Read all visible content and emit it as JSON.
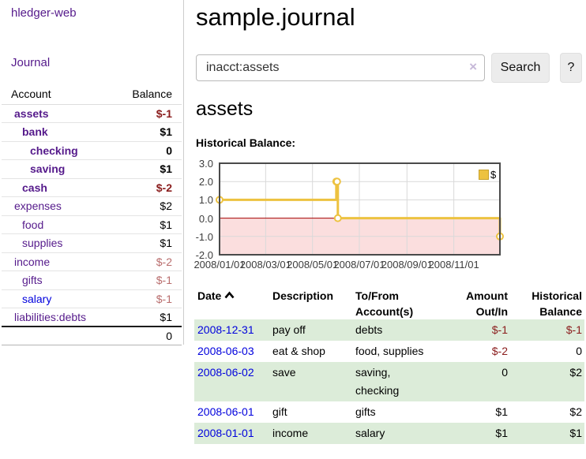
{
  "sidebar": {
    "brand": "hledger-web",
    "nav": {
      "journal_label": "Journal"
    },
    "accounts_table": {
      "headers": {
        "account": "Account",
        "balance": "Balance"
      },
      "accounts": [
        {
          "name": "assets",
          "balance": "$-1",
          "depth": 0,
          "bold": true,
          "balance_tone": "strong"
        },
        {
          "name": "bank",
          "balance": "$1",
          "depth": 1,
          "bold": true,
          "balance_tone": "normal"
        },
        {
          "name": "checking",
          "balance": "0",
          "depth": 2,
          "bold": true,
          "balance_tone": "normal"
        },
        {
          "name": "saving",
          "balance": "$1",
          "depth": 2,
          "bold": true,
          "balance_tone": "normal"
        },
        {
          "name": "cash",
          "balance": "$-2",
          "depth": 1,
          "bold": true,
          "balance_tone": "strong"
        },
        {
          "name": "expenses",
          "balance": "$2",
          "depth": 0,
          "bold": false,
          "balance_tone": "normal"
        },
        {
          "name": "food",
          "balance": "$1",
          "depth": 1,
          "bold": false,
          "balance_tone": "normal"
        },
        {
          "name": "supplies",
          "balance": "$1",
          "depth": 1,
          "bold": false,
          "balance_tone": "normal"
        },
        {
          "name": "income",
          "balance": "$-2",
          "depth": 0,
          "bold": false,
          "balance_tone": "soft"
        },
        {
          "name": "gifts",
          "balance": "$-1",
          "depth": 1,
          "bold": false,
          "balance_tone": "soft"
        },
        {
          "name": "salary",
          "balance": "$-1",
          "depth": 1,
          "bold": false,
          "balance_tone": "soft",
          "link_color": "blue"
        },
        {
          "name": "liabilities:debts",
          "balance": "$1",
          "depth": 0,
          "bold": false,
          "balance_tone": "normal"
        }
      ],
      "total": "0"
    }
  },
  "main": {
    "title": "sample.journal",
    "search": {
      "value": "inacct:assets",
      "clear_icon": "×",
      "search_button": "Search",
      "help_button": "?"
    },
    "account_heading": "assets",
    "section_label": "Historical Balance:"
  },
  "chart_data": {
    "type": "line",
    "style": "steps",
    "series": [
      {
        "name": "$",
        "color": "#edc240",
        "points": [
          [
            "2008-01-01",
            1
          ],
          [
            "2008-06-01",
            2
          ],
          [
            "2008-06-02",
            2
          ],
          [
            "2008-06-03",
            0
          ],
          [
            "2008-12-31",
            -1
          ]
        ]
      }
    ],
    "xlim": [
      "2008-01-01",
      "2008-12-31"
    ],
    "ylim": [
      -2,
      3
    ],
    "x_ticks": [
      "2008/01/01",
      "2008/03/01",
      "2008/05/01",
      "2008/07/01",
      "2008/09/01",
      "2008/11/01"
    ],
    "y_ticks": [
      "3.0",
      "2.0",
      "1.0",
      "0.0",
      "-1.0",
      "-2.0"
    ],
    "legend": {
      "label": "$",
      "position": "top-right"
    },
    "grid": true,
    "negative_region": true
  },
  "register": {
    "columns": [
      {
        "id": "date",
        "lines": [
          "Date"
        ],
        "align": "left",
        "sortable": true
      },
      {
        "id": "description",
        "lines": [
          "Description"
        ],
        "align": "left"
      },
      {
        "id": "accounts",
        "lines": [
          "To/From",
          "Account(s)"
        ],
        "align": "left"
      },
      {
        "id": "amount",
        "lines": [
          "Amount",
          "Out/In"
        ],
        "align": "right"
      },
      {
        "id": "balance",
        "lines": [
          "Historical",
          "Balance"
        ],
        "align": "right"
      }
    ],
    "rows": [
      {
        "date": "2008-12-31",
        "description": "pay off",
        "accounts": "debts",
        "amount": "$-1",
        "balance": "$-1",
        "amount_negative": true,
        "balance_negative": true,
        "wrap_accounts": false
      },
      {
        "date": "2008-06-03",
        "description": "eat & shop",
        "accounts": "food, supplies",
        "amount": "$-2",
        "balance": "0",
        "amount_negative": true,
        "balance_negative": false,
        "wrap_accounts": false
      },
      {
        "date": "2008-06-02",
        "description": "save",
        "accounts": "saving, checking",
        "amount": "0",
        "balance": "$2",
        "amount_negative": false,
        "balance_negative": false,
        "wrap_accounts": true
      },
      {
        "date": "2008-06-01",
        "description": "gift",
        "accounts": "gifts",
        "amount": "$1",
        "balance": "$2",
        "amount_negative": false,
        "balance_negative": false,
        "wrap_accounts": false
      },
      {
        "date": "2008-01-01",
        "description": "income",
        "accounts": "salary",
        "amount": "$1",
        "balance": "$1",
        "amount_negative": false,
        "balance_negative": false,
        "wrap_accounts": false
      }
    ]
  },
  "colors": {
    "link_purple": "#551a8b",
    "link_blue": "#0000dd",
    "negative_strong": "#8a1c1c",
    "negative_soft": "#b96d6d",
    "row_stripe_green": "#dcecd9",
    "series_gold": "#edc240",
    "chart_negative_fill": "#fbdede",
    "chart_zero_line": "#a40000"
  }
}
